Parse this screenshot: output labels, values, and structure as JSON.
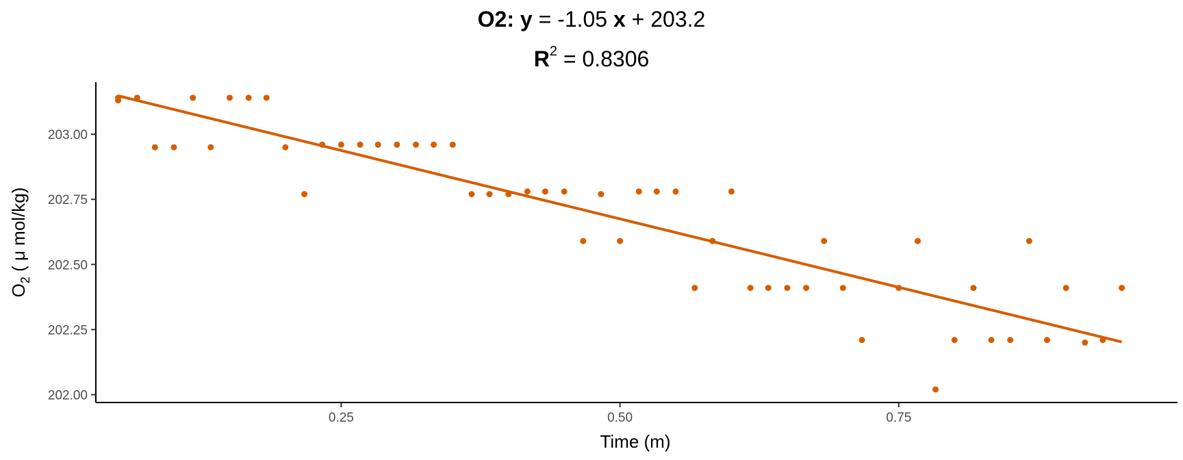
{
  "title": {
    "series_label": "O2:",
    "y_symbol": "y",
    "equals": "=",
    "slope_text": "-1.05",
    "x_symbol": "x",
    "plus": "+",
    "intercept_text": "203.2",
    "r_symbol": "R",
    "r_exponent": "2",
    "r2_value": "0.8306"
  },
  "chart_data": {
    "type": "scatter",
    "xlabel": "Time (m)",
    "ylabel_main": "O",
    "ylabel_sub": "2",
    "ylabel_unit": " ( μ mol/kg)",
    "xlim": [
      0.03,
      1.0
    ],
    "ylim": [
      201.97,
      203.2
    ],
    "x_ticks": [
      0.25,
      0.5,
      0.75
    ],
    "x_tick_labels": [
      "0.25",
      "0.50",
      "0.75"
    ],
    "y_ticks": [
      202.0,
      202.25,
      202.5,
      202.75,
      203.0
    ],
    "y_tick_labels": [
      "202.00",
      "202.25",
      "202.50",
      "202.75",
      "203.00"
    ],
    "grid": false,
    "color": "#D55E00",
    "fit_line": {
      "slope": -1.05,
      "intercept": 203.2,
      "x_range": [
        0.05,
        0.95
      ]
    },
    "points": [
      {
        "x": 0.05,
        "y": 203.14
      },
      {
        "x": 0.05,
        "y": 203.13
      },
      {
        "x": 0.067,
        "y": 203.14
      },
      {
        "x": 0.083,
        "y": 202.95
      },
      {
        "x": 0.1,
        "y": 202.95
      },
      {
        "x": 0.117,
        "y": 203.14
      },
      {
        "x": 0.133,
        "y": 202.95
      },
      {
        "x": 0.15,
        "y": 203.14
      },
      {
        "x": 0.167,
        "y": 203.14
      },
      {
        "x": 0.183,
        "y": 203.14
      },
      {
        "x": 0.2,
        "y": 202.95
      },
      {
        "x": 0.217,
        "y": 202.77
      },
      {
        "x": 0.233,
        "y": 202.96
      },
      {
        "x": 0.25,
        "y": 202.96
      },
      {
        "x": 0.267,
        "y": 202.96
      },
      {
        "x": 0.283,
        "y": 202.96
      },
      {
        "x": 0.3,
        "y": 202.96
      },
      {
        "x": 0.317,
        "y": 202.96
      },
      {
        "x": 0.333,
        "y": 202.96
      },
      {
        "x": 0.35,
        "y": 202.96
      },
      {
        "x": 0.367,
        "y": 202.77
      },
      {
        "x": 0.383,
        "y": 202.77
      },
      {
        "x": 0.4,
        "y": 202.77
      },
      {
        "x": 0.417,
        "y": 202.78
      },
      {
        "x": 0.433,
        "y": 202.78
      },
      {
        "x": 0.45,
        "y": 202.78
      },
      {
        "x": 0.467,
        "y": 202.59
      },
      {
        "x": 0.483,
        "y": 202.77
      },
      {
        "x": 0.5,
        "y": 202.59
      },
      {
        "x": 0.517,
        "y": 202.78
      },
      {
        "x": 0.533,
        "y": 202.78
      },
      {
        "x": 0.55,
        "y": 202.78
      },
      {
        "x": 0.567,
        "y": 202.41
      },
      {
        "x": 0.583,
        "y": 202.59
      },
      {
        "x": 0.6,
        "y": 202.78
      },
      {
        "x": 0.617,
        "y": 202.41
      },
      {
        "x": 0.633,
        "y": 202.41
      },
      {
        "x": 0.65,
        "y": 202.41
      },
      {
        "x": 0.667,
        "y": 202.41
      },
      {
        "x": 0.683,
        "y": 202.59
      },
      {
        "x": 0.7,
        "y": 202.41
      },
      {
        "x": 0.717,
        "y": 202.21
      },
      {
        "x": 0.75,
        "y": 202.41
      },
      {
        "x": 0.767,
        "y": 202.59
      },
      {
        "x": 0.783,
        "y": 202.02
      },
      {
        "x": 0.8,
        "y": 202.21
      },
      {
        "x": 0.817,
        "y": 202.41
      },
      {
        "x": 0.833,
        "y": 202.21
      },
      {
        "x": 0.85,
        "y": 202.21
      },
      {
        "x": 0.867,
        "y": 202.59
      },
      {
        "x": 0.883,
        "y": 202.21
      },
      {
        "x": 0.9,
        "y": 202.41
      },
      {
        "x": 0.917,
        "y": 202.2
      },
      {
        "x": 0.933,
        "y": 202.21
      },
      {
        "x": 0.95,
        "y": 202.41
      }
    ]
  }
}
